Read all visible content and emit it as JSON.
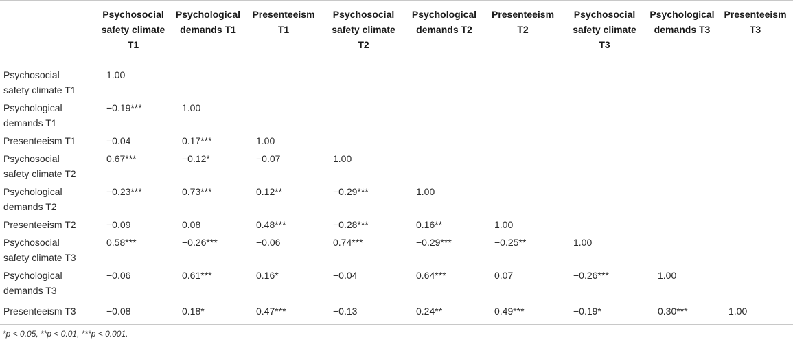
{
  "table": {
    "corner": "",
    "columns": [
      "Psychosocial safety climate T1",
      "Psychological demands T1",
      "Presenteeism T1",
      "Psychosocial safety climate T2",
      "Psychological demands T2",
      "Presenteeism T2",
      "Psychosocial safety climate T3",
      "Psychological demands T3",
      "Presenteeism T3"
    ],
    "rows": [
      {
        "label": "Psychosocial safety climate T1",
        "cells": [
          "1.00",
          "",
          "",
          "",
          "",
          "",
          "",
          "",
          ""
        ]
      },
      {
        "label": "Psychological demands T1",
        "cells": [
          "−0.19***",
          "1.00",
          "",
          "",
          "",
          "",
          "",
          "",
          ""
        ]
      },
      {
        "label": "Presenteeism T1",
        "cells": [
          "−0.04",
          "0.17***",
          "1.00",
          "",
          "",
          "",
          "",
          "",
          ""
        ]
      },
      {
        "label": "Psychosocial safety climate T2",
        "cells": [
          "0.67***",
          "−0.12*",
          "−0.07",
          "1.00",
          "",
          "",
          "",
          "",
          ""
        ]
      },
      {
        "label": "Psychological demands T2",
        "cells": [
          "−0.23***",
          "0.73***",
          "0.12**",
          "−0.29***",
          "1.00",
          "",
          "",
          "",
          ""
        ]
      },
      {
        "label": "Presenteeism T2",
        "cells": [
          "−0.09",
          "0.08",
          "0.48***",
          "−0.28***",
          "0.16**",
          "1.00",
          "",
          "",
          ""
        ]
      },
      {
        "label": "Psychosocial safety climate T3",
        "cells": [
          "0.58***",
          "−0.26***",
          "−0.06",
          "0.74***",
          "−0.29***",
          "−0.25**",
          "1.00",
          "",
          ""
        ]
      },
      {
        "label": "Psychological demands T3",
        "cells": [
          "−0.06",
          "0.61***",
          "0.16*",
          "−0.04",
          "0.64***",
          "0.07",
          "−0.26***",
          "1.00",
          ""
        ]
      },
      {
        "label": "Presenteeism T3",
        "cells": [
          "−0.08",
          "0.18*",
          "0.47***",
          "−0.13",
          "0.24**",
          "0.49***",
          "−0.19*",
          "0.30***",
          "1.00"
        ]
      }
    ]
  },
  "footnote": "*p < 0.05, **p < 0.01, ***p < 0.001."
}
